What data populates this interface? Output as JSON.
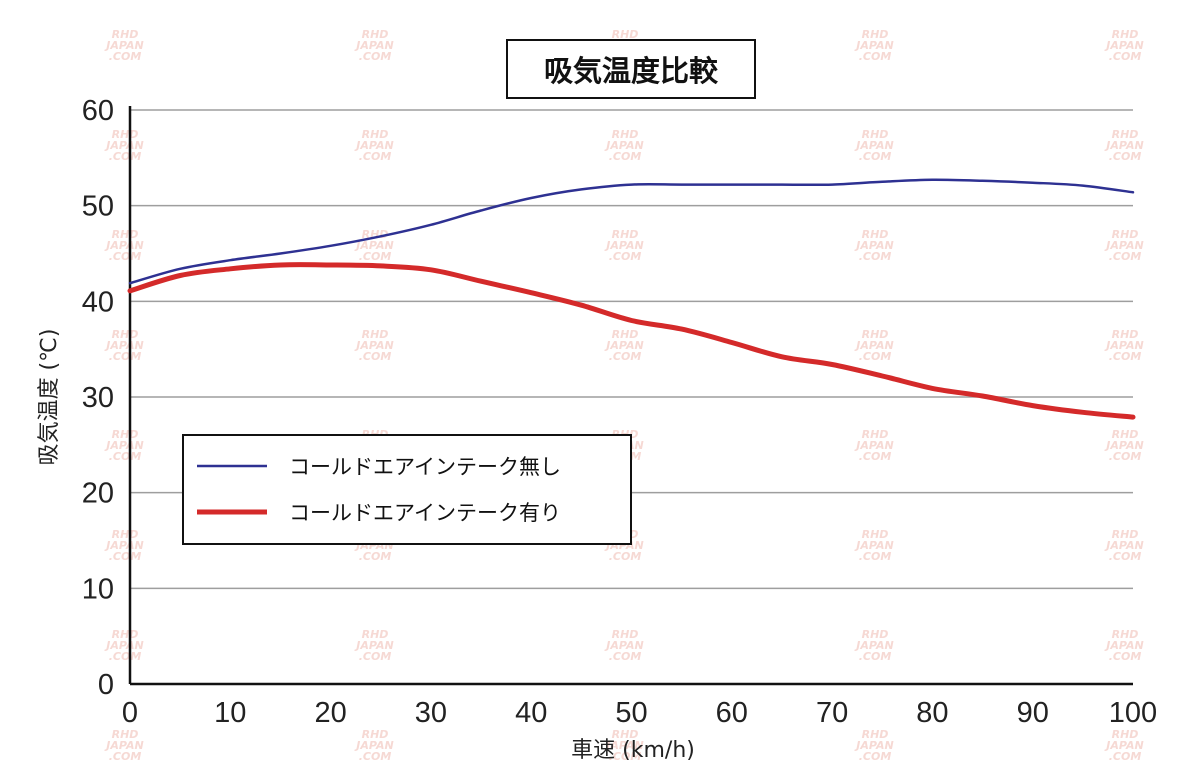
{
  "chart_data": {
    "type": "line",
    "title": "吸気温度比較",
    "xlabel": "車速 (km/h)",
    "ylabel": "吸気温度 (℃)",
    "xlim": [
      0,
      100
    ],
    "ylim": [
      0,
      60
    ],
    "x_ticks": [
      "0",
      "10",
      "20",
      "30",
      "40",
      "50",
      "60",
      "70",
      "80",
      "90",
      "100"
    ],
    "y_ticks": [
      "0",
      "10",
      "20",
      "30",
      "40",
      "50",
      "60"
    ],
    "grid": true,
    "legend_position": "center-left",
    "x": [
      0,
      5,
      10,
      15,
      20,
      25,
      30,
      35,
      40,
      45,
      50,
      55,
      60,
      65,
      70,
      75,
      80,
      85,
      90,
      95,
      100
    ],
    "series": [
      {
        "name": "コールドエアインテーク無し",
        "color": "#2e3192",
        "values": [
          41.9,
          43.4,
          44.3,
          45.0,
          45.8,
          46.8,
          48.0,
          49.5,
          50.8,
          51.7,
          52.2,
          52.2,
          52.2,
          52.2,
          52.2,
          52.5,
          52.7,
          52.6,
          52.4,
          52.1,
          51.4
        ]
      },
      {
        "name": "コールドエアインテーク有り",
        "color": "#d42a2a",
        "values": [
          41.1,
          42.7,
          43.4,
          43.8,
          43.8,
          43.7,
          43.3,
          42.1,
          40.9,
          39.6,
          38.0,
          37.1,
          35.7,
          34.2,
          33.4,
          32.2,
          30.9,
          30.1,
          29.1,
          28.4,
          27.9
        ]
      }
    ]
  },
  "watermark": {
    "lines": [
      "RHD",
      "JAPAN",
      ".COM"
    ]
  },
  "colors": {
    "grid": "#9e9e9e",
    "axis": "#111111",
    "watermark": "#f6d9d4"
  }
}
